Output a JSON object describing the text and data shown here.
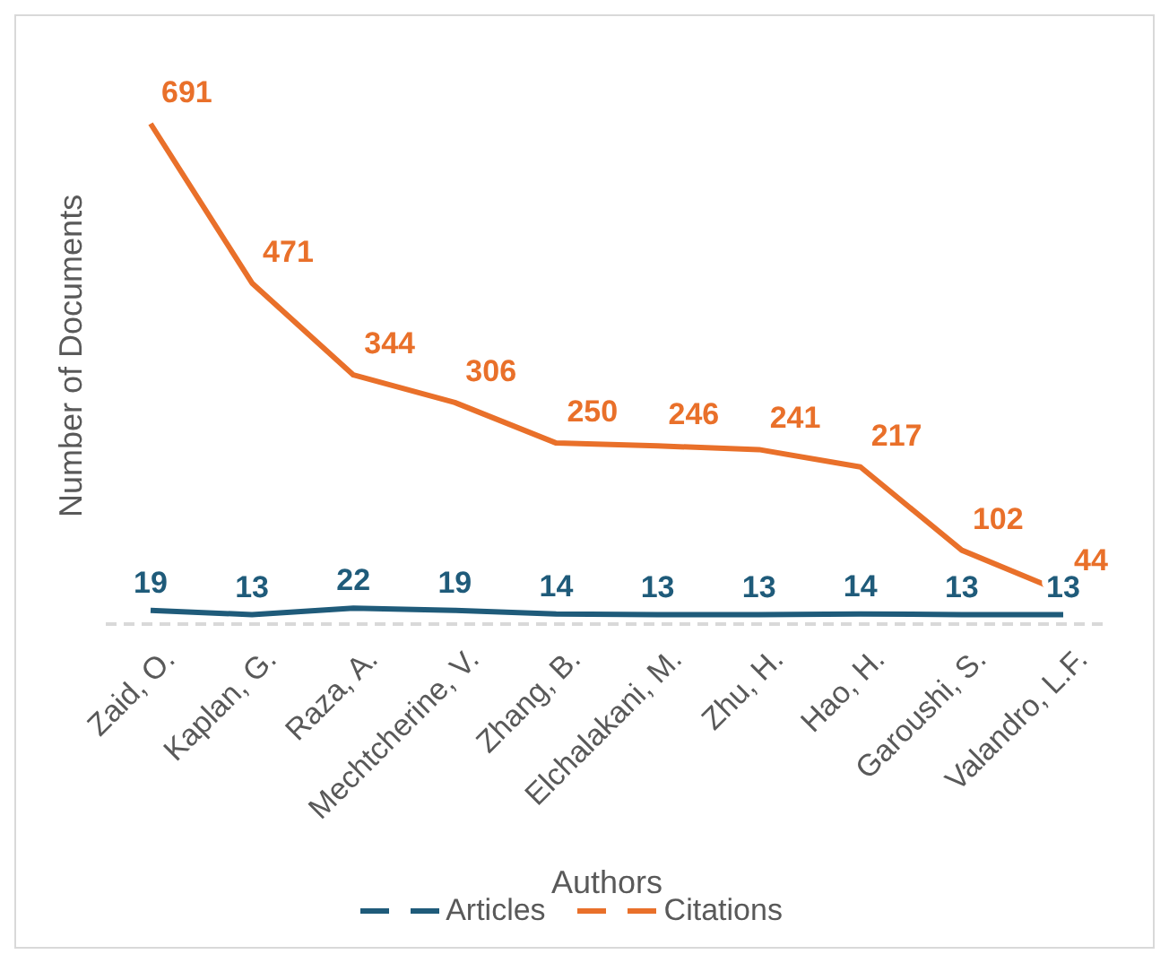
{
  "chart_data": {
    "type": "line",
    "xlabel": "Authors",
    "ylabel": "Number of Documents",
    "categories": [
      "Zaid, O.",
      "Kaplan, G.",
      "Raza, A.",
      "Mechtcherine, V.",
      "Zhang, B.",
      "Elchalakani, M.",
      "Zhu, H.",
      "Hao, H.",
      "Garoushi, S.",
      "Valandro, L.F."
    ],
    "series": [
      {
        "name": "Articles",
        "color": "#1f5b7a",
        "values": [
          19,
          13,
          22,
          19,
          14,
          13,
          13,
          14,
          13,
          13
        ]
      },
      {
        "name": "Citations",
        "color": "#e9702a",
        "values": [
          691,
          471,
          344,
          306,
          250,
          246,
          241,
          217,
          102,
          44
        ]
      }
    ],
    "data_labels": true,
    "legend": "bottom",
    "tick_labels": "x",
    "line_style": "solid"
  }
}
